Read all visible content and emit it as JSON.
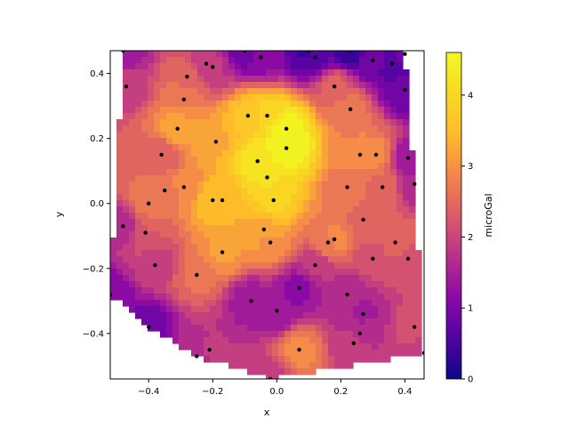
{
  "chart_data": {
    "type": "tricontourf",
    "title": "",
    "xlabel": "x",
    "ylabel": "y",
    "xlim": [
      -0.52,
      0.46
    ],
    "ylim": [
      -0.54,
      0.47
    ],
    "x_ticks": [
      -0.4,
      -0.2,
      0.0,
      0.2,
      0.4
    ],
    "x_tick_labels": [
      "−0.4",
      "−0.2",
      "0.0",
      "0.2",
      "0.4"
    ],
    "y_ticks": [
      -0.4,
      -0.2,
      0.0,
      0.2,
      0.4
    ],
    "y_tick_labels": [
      "−0.4",
      "−0.2",
      "0.0",
      "0.2",
      "0.4"
    ],
    "colormap": "plasma",
    "colorbar": {
      "label": "microGal",
      "range": [
        0,
        4.6
      ],
      "ticks": [
        0,
        1,
        2,
        3,
        4
      ],
      "tick_labels": [
        "0",
        "1",
        "2",
        "3",
        "4"
      ]
    },
    "points": [
      [
        -0.47,
        0.36,
        1.9
      ],
      [
        -0.22,
        0.43,
        1.8
      ],
      [
        -0.2,
        0.42,
        1.8
      ],
      [
        -0.05,
        0.45,
        1.2
      ],
      [
        -0.28,
        0.39,
        2.5
      ],
      [
        -0.29,
        0.32,
        2.8
      ],
      [
        -0.31,
        0.23,
        3.2
      ],
      [
        -0.36,
        0.15,
        2.3
      ],
      [
        -0.35,
        0.04,
        2.6
      ],
      [
        -0.29,
        0.05,
        2.9
      ],
      [
        -0.19,
        0.19,
        3.3
      ],
      [
        -0.09,
        0.27,
        3.6
      ],
      [
        -0.03,
        0.27,
        4.0
      ],
      [
        0.03,
        0.23,
        4.5
      ],
      [
        0.03,
        0.17,
        4.6
      ],
      [
        -0.06,
        0.13,
        4.3
      ],
      [
        -0.03,
        0.08,
        4.1
      ],
      [
        -0.01,
        0.01,
        3.9
      ],
      [
        -0.4,
        0.0,
        2.7
      ],
      [
        -0.2,
        0.01,
        3.5
      ],
      [
        -0.17,
        0.01,
        3.4
      ],
      [
        -0.48,
        -0.07,
        1.6
      ],
      [
        -0.41,
        -0.09,
        2.3
      ],
      [
        -0.38,
        -0.19,
        1.9
      ],
      [
        -0.17,
        -0.15,
        3.1
      ],
      [
        -0.04,
        -0.08,
        3.3
      ],
      [
        -0.02,
        -0.12,
        3.0
      ],
      [
        -0.25,
        -0.22,
        2.6
      ],
      [
        -0.4,
        -0.38,
        0.9
      ],
      [
        -0.08,
        -0.3,
        1.4
      ],
      [
        0.0,
        -0.33,
        1.3
      ],
      [
        0.12,
        -0.19,
        1.8
      ],
      [
        0.07,
        -0.26,
        1.2
      ],
      [
        0.16,
        -0.12,
        2.7
      ],
      [
        0.18,
        -0.11,
        2.9
      ],
      [
        0.22,
        0.05,
        2.7
      ],
      [
        0.27,
        -0.05,
        2.5
      ],
      [
        0.26,
        0.15,
        2.9
      ],
      [
        0.31,
        0.15,
        2.9
      ],
      [
        0.33,
        0.05,
        2.5
      ],
      [
        0.37,
        -0.12,
        2.5
      ],
      [
        0.41,
        -0.17,
        2.2
      ],
      [
        0.43,
        0.06,
        1.6
      ],
      [
        0.41,
        0.14,
        1.3
      ],
      [
        0.4,
        0.35,
        0.8
      ],
      [
        0.36,
        0.43,
        0.6
      ],
      [
        0.3,
        0.44,
        0.9
      ],
      [
        0.18,
        0.36,
        2.4
      ],
      [
        0.23,
        0.29,
        2.7
      ],
      [
        0.23,
        0.47,
        0.4
      ],
      [
        0.4,
        0.46,
        0.9
      ],
      [
        0.22,
        -0.28,
        1.6
      ],
      [
        0.27,
        -0.34,
        1.5
      ],
      [
        0.26,
        -0.4,
        1.7
      ],
      [
        0.24,
        -0.43,
        1.9
      ],
      [
        0.3,
        -0.17,
        2.1
      ],
      [
        0.43,
        -0.38,
        2.2
      ],
      [
        0.46,
        -0.46,
        1.8
      ],
      [
        0.07,
        -0.45,
        2.9
      ],
      [
        -0.21,
        -0.45,
        1.8
      ],
      [
        -0.25,
        -0.47,
        1.7
      ],
      [
        -0.02,
        -0.54,
        1.9
      ],
      [
        -0.52,
        -0.28,
        1.1
      ],
      [
        -0.48,
        0.47,
        1.3
      ],
      [
        -0.1,
        0.47,
        0.8
      ],
      [
        0.1,
        0.47,
        0.4
      ],
      [
        0.12,
        0.45,
        0.7
      ]
    ]
  }
}
